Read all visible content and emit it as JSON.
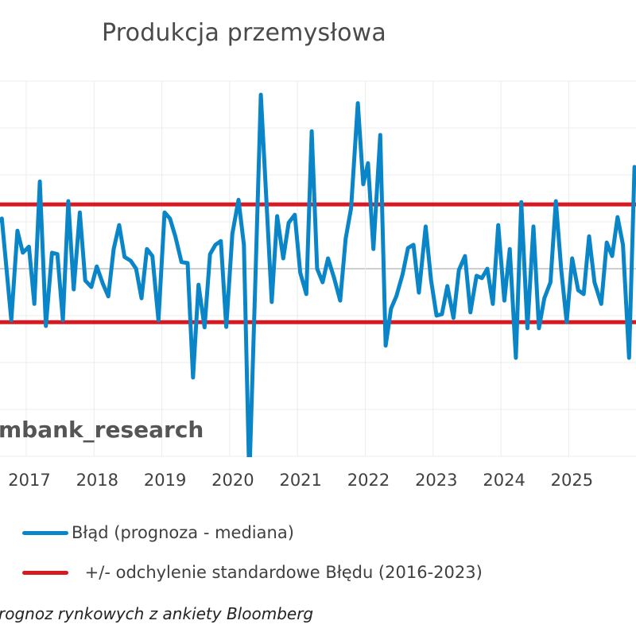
{
  "header": {
    "title": "Produkcja przemysłowa"
  },
  "watermark": "mbank_research",
  "source_note": "rognoz rynkowych z ankiety Bloomberg",
  "legend": [
    {
      "label": "Błąd (prognoza - mediana)",
      "color": "#0a86c8"
    },
    {
      "label": " +/- odchylenie standardowe Błędu (2016-2023)",
      "color": "#d71920"
    }
  ],
  "colors": {
    "series": "#0a86c8",
    "band": "#d71920",
    "grid": "#ececec",
    "zero_line": "#cfcfcf"
  },
  "chart_data": {
    "type": "line",
    "title": "Produkcja przemysłowa",
    "xlabel": "",
    "ylabel": "",
    "x_tick_labels": [
      "2017",
      "2018",
      "2019",
      "2020",
      "2021",
      "2022",
      "2023",
      "2024",
      "2025"
    ],
    "x_ticks": [
      2017,
      2018,
      2019,
      2020,
      2021,
      2022,
      2023,
      2024,
      2025
    ],
    "xlim": [
      2016.61,
      2025.99
    ],
    "ylim": [
      -4,
      4
    ],
    "y_gridlines": [
      -4,
      -3,
      -2,
      -1,
      0,
      1,
      2,
      3,
      4
    ],
    "grid": true,
    "legend_position": "bottom",
    "series": [
      {
        "name": "Błąd (prognoza - mediana)",
        "color": "#0a86c8",
        "x": [
          2016.61,
          2016.64,
          2016.78,
          2016.87,
          2016.95,
          2017.04,
          2017.12,
          2017.2,
          2017.29,
          2017.38,
          2017.46,
          2017.54,
          2017.62,
          2017.7,
          2017.79,
          2017.87,
          2017.96,
          2018.04,
          2018.13,
          2018.21,
          2018.29,
          2018.37,
          2018.45,
          2018.54,
          2018.62,
          2018.7,
          2018.78,
          2018.86,
          2018.95,
          2019.04,
          2019.12,
          2019.2,
          2019.29,
          2019.38,
          2019.46,
          2019.54,
          2019.63,
          2019.71,
          2019.79,
          2019.87,
          2019.95,
          2020.04,
          2020.13,
          2020.21,
          2020.29,
          2020.38,
          2020.46,
          2020.54,
          2020.62,
          2020.7,
          2020.79,
          2020.87,
          2020.96,
          2021.04,
          2021.13,
          2021.21,
          2021.29,
          2021.37,
          2021.45,
          2021.54,
          2021.63,
          2021.71,
          2021.79,
          2021.89,
          2021.97,
          2022.04,
          2022.12,
          2022.22,
          2022.3,
          2022.38,
          2022.46,
          2022.55,
          2022.63,
          2022.71,
          2022.79,
          2022.89,
          2022.97,
          2023.05,
          2023.13,
          2023.21,
          2023.3,
          2023.38,
          2023.47,
          2023.55,
          2023.64,
          2023.72,
          2023.8,
          2023.88,
          2023.96,
          2024.05,
          2024.13,
          2024.22,
          2024.3,
          2024.39,
          2024.48,
          2024.56,
          2024.64,
          2024.73,
          2024.81,
          2024.89,
          2024.97,
          2025.05,
          2025.14,
          2025.22,
          2025.3,
          2025.38,
          2025.48,
          2025.56,
          2025.64,
          2025.72,
          2025.8,
          2025.89,
          2025.97
        ],
        "values": [
          1.02,
          1.07,
          -1.1,
          0.81,
          0.34,
          0.47,
          -0.75,
          1.86,
          -1.22,
          0.34,
          0.31,
          -1.1,
          1.44,
          -0.44,
          1.2,
          -0.25,
          -0.39,
          0.05,
          -0.32,
          -0.59,
          0.42,
          0.93,
          0.25,
          0.17,
          0.0,
          -0.63,
          0.42,
          0.27,
          -1.1,
          1.2,
          1.07,
          0.68,
          0.14,
          0.12,
          -2.32,
          -0.34,
          -1.25,
          0.31,
          0.51,
          0.59,
          -1.24,
          0.75,
          1.47,
          0.51,
          -4.5,
          -0.2,
          3.71,
          1.49,
          -0.71,
          1.12,
          0.22,
          0.98,
          1.15,
          -0.08,
          -0.54,
          2.93,
          0.0,
          -0.29,
          0.22,
          -0.2,
          -0.68,
          0.64,
          1.29,
          3.53,
          1.8,
          2.25,
          0.42,
          2.85,
          -1.64,
          -0.85,
          -0.58,
          -0.12,
          0.44,
          0.51,
          -0.51,
          0.9,
          -0.24,
          -1.0,
          -0.97,
          -0.37,
          -1.05,
          -0.03,
          0.27,
          -0.93,
          -0.15,
          -0.2,
          0.0,
          -0.75,
          0.93,
          -0.68,
          0.42,
          -1.9,
          1.42,
          -1.27,
          0.9,
          -1.27,
          -0.63,
          -0.29,
          1.44,
          -0.03,
          -1.14,
          0.22,
          -0.46,
          -0.54,
          0.69,
          -0.29,
          -0.75,
          0.56,
          0.27,
          1.1,
          0.51,
          -1.9,
          2.17
        ]
      },
      {
        "name": "+/- odchylenie standardowe Błędu (2016-2023) upper",
        "color": "#d71920",
        "constant": 1.37
      },
      {
        "name": "+/- odchylenie standardowe Błędu (2016-2023) lower",
        "color": "#d71920",
        "constant": -1.14
      }
    ]
  }
}
